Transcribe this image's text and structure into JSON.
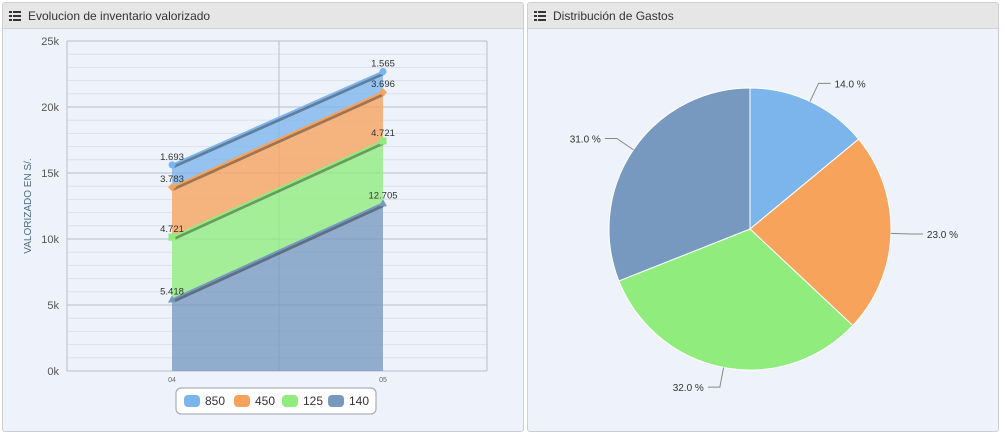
{
  "panels": [
    {
      "title": "Evolucion de inventario valorizado",
      "icon": "list-icon",
      "chart_data": {
        "type": "area",
        "stacked": true,
        "x": [
          "04",
          "05"
        ],
        "ylabel": "VALORIZADO EN S/.",
        "ylim": [
          0,
          25000
        ],
        "yticks": [
          {
            "value": 0,
            "label": "0k"
          },
          {
            "value": 5000,
            "label": "5k"
          },
          {
            "value": 10000,
            "label": "10k"
          },
          {
            "value": 15000,
            "label": "15k"
          },
          {
            "value": 20000,
            "label": "20k"
          },
          {
            "value": 25000,
            "label": "25k"
          }
        ],
        "grid": true,
        "legend_position": "bottom-center",
        "series": [
          {
            "name": "850",
            "color": "#7cb5ec",
            "values": [
              1693,
              1565
            ],
            "labels": [
              "1.693",
              "1.565"
            ]
          },
          {
            "name": "450",
            "color": "#f7a35c",
            "values": [
              3783,
              3696
            ],
            "labels": [
              "3.783",
              "3.696"
            ]
          },
          {
            "name": "125",
            "color": "#90ed7d",
            "values": [
              4721,
              4721
            ],
            "labels": [
              "4.721",
              "4.721"
            ]
          },
          {
            "name": "140",
            "color": "#7798bf",
            "values": [
              5418,
              12705
            ],
            "labels": [
              "5.418",
              "12.705"
            ]
          }
        ]
      }
    },
    {
      "title": "Distribución de Gastos",
      "icon": "list-icon",
      "chart_data": {
        "type": "pie",
        "slices": [
          {
            "label": "14.0 %",
            "value": 14.0,
            "color": "#7cb5ec"
          },
          {
            "label": "23.0 %",
            "value": 23.0,
            "color": "#f7a35c"
          },
          {
            "label": "32.0 %",
            "value": 32.0,
            "color": "#90ed7d"
          },
          {
            "label": "31.0 %",
            "value": 31.0,
            "color": "#7798bf"
          }
        ]
      }
    }
  ]
}
